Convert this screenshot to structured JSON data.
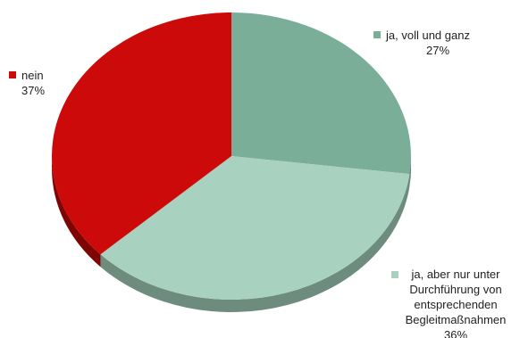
{
  "chart_data": {
    "type": "pie",
    "title": "",
    "style": "3d",
    "legend": "labels-beside-slices",
    "slices": [
      {
        "label_lines": [
          "ja, voll und ganz"
        ],
        "value": 27,
        "value_label": "27%",
        "color": "#7aae98",
        "side_color": "#557a69"
      },
      {
        "label_lines": [
          "ja, aber nur unter",
          "Durchführung von",
          "entsprechenden",
          "Begleitmaßnahmen"
        ],
        "value": 36,
        "value_label": "36%",
        "color": "#a8d1c0",
        "side_color": "#6d8c7e"
      },
      {
        "label_lines": [
          "nein"
        ],
        "value": 37,
        "value_label": "37%",
        "color": "#cc0a0a",
        "side_color": "#7f0505"
      }
    ]
  }
}
